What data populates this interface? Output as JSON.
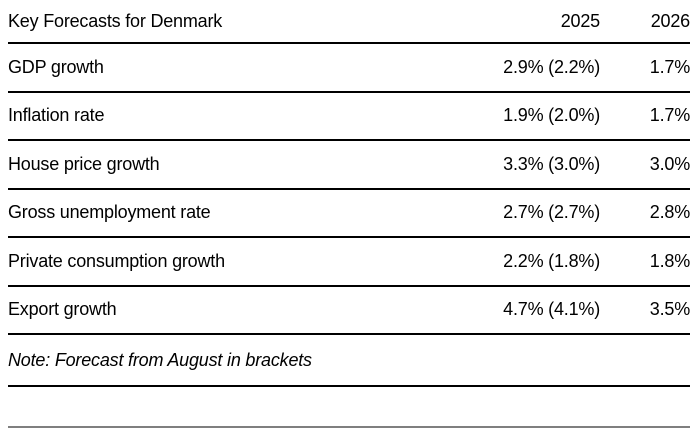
{
  "chart_data": {
    "type": "table",
    "title": "Key Forecasts for Denmark",
    "columns": [
      "Key Forecasts for Denmark",
      "2025",
      "2026"
    ],
    "rows": [
      [
        "GDP growth",
        "2.9% (2.2%)",
        "1.7%"
      ],
      [
        "Inflation rate",
        "1.9% (2.0%)",
        "1.7%"
      ],
      [
        "House price growth",
        "3.3% (3.0%)",
        "3.0%"
      ],
      [
        "Gross unemployment rate",
        "2.7% (2.7%)",
        "2.8%"
      ],
      [
        "Private consumption growth",
        "2.2% (1.8%)",
        "1.8%"
      ],
      [
        "Export growth",
        "4.7% (4.1%)",
        "3.5%"
      ]
    ],
    "note": "Note: Forecast from August in brackets",
    "layout_hints": {
      "value_alignment": "right",
      "note_style": "italic",
      "row_separators": true
    }
  },
  "colors": {
    "background": "#ffffff",
    "text": "#000000",
    "rule": "#000000",
    "bottom_rule": "#7f7f7f"
  }
}
